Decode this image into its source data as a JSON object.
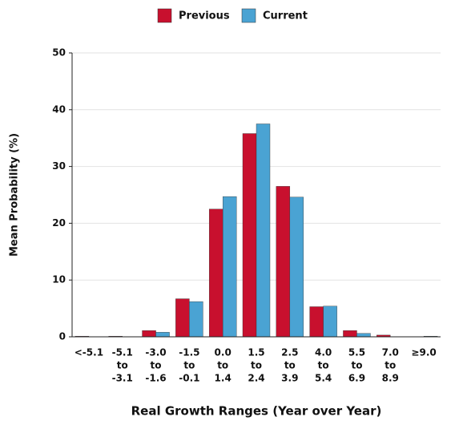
{
  "chart_data": {
    "type": "bar",
    "x_label": "Real Growth Ranges (Year over Year)",
    "y_label": "Mean Probability (%)",
    "categories": [
      [
        "<-5.1"
      ],
      [
        "-5.1",
        "to",
        "-3.1"
      ],
      [
        "-3.0",
        "to",
        "-1.6"
      ],
      [
        "-1.5",
        "to",
        "-0.1"
      ],
      [
        "0.0",
        "to",
        "1.4"
      ],
      [
        "1.5",
        "to",
        "2.4"
      ],
      [
        "2.5",
        "to",
        "3.9"
      ],
      [
        "4.0",
        "to",
        "5.4"
      ],
      [
        "5.5",
        "to",
        "6.9"
      ],
      [
        "7.0",
        "to",
        "8.9"
      ],
      [
        "≥9.0"
      ]
    ],
    "series": [
      {
        "name": "Previous",
        "color": "#c8102e",
        "values": [
          0.1,
          0.1,
          1.1,
          6.7,
          22.5,
          35.8,
          26.5,
          5.3,
          1.1,
          0.3,
          0
        ]
      },
      {
        "name": "Current",
        "color": "#4aa3d3",
        "values": [
          0,
          0,
          0.8,
          6.2,
          24.7,
          37.5,
          24.6,
          5.4,
          0.6,
          0,
          0.1
        ]
      }
    ],
    "ylim": [
      0,
      50
    ],
    "yticks": [
      0,
      10,
      20,
      30,
      40,
      50
    ],
    "grid": true,
    "legend": "top"
  }
}
